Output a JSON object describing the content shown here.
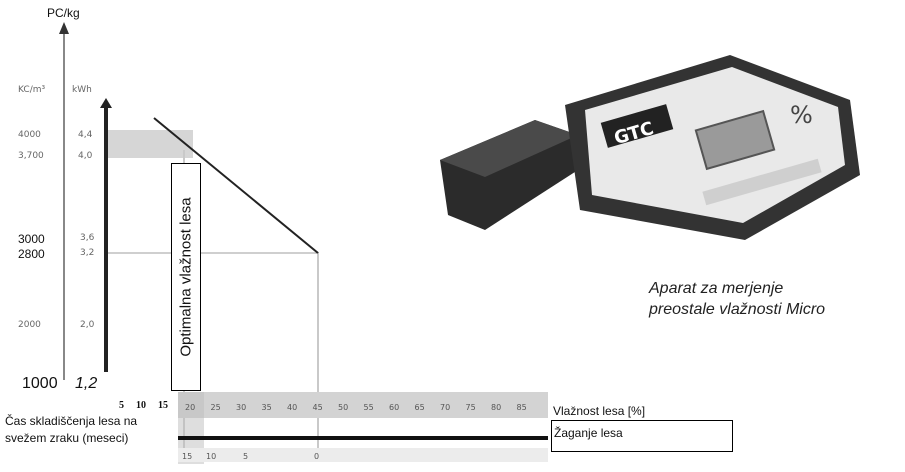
{
  "chart_data": {
    "type": "line",
    "y_axis_title": "PC/kg",
    "y_axis_left_header": "KC/m³",
    "y_axis_right_header": "kWh",
    "y_ticks": [
      {
        "left": "4000",
        "right": "4,4"
      },
      {
        "left": "3,700",
        "right": "4,0"
      },
      {
        "left": "3000",
        "right": "3,6"
      },
      {
        "left": "2800",
        "right": "3,2"
      },
      {
        "left": "2000",
        "right": "2,0"
      }
    ],
    "y_bottom_left": "1000",
    "y_bottom_right": "1,2",
    "x_axis_label": "Vlažnost lesa [%]",
    "x_start_ticks": [
      "5",
      "10",
      "15"
    ],
    "x_ticks": [
      "20",
      "25",
      "30",
      "35",
      "40",
      "45",
      "50",
      "55",
      "60",
      "65",
      "70",
      "75",
      "80",
      "85"
    ],
    "line_points": [
      [
        20,
        4000
      ],
      [
        45,
        2800
      ]
    ],
    "optimal_band_label": "Optimalna vlažnost lesa",
    "bottom_axis_label": "Žaganje lesa",
    "bottom_ticks": [
      "15",
      "10",
      "5",
      "0"
    ],
    "storage_label": "Čas skladiščenja lesa na svežem zraku (meseci)"
  },
  "device": {
    "caption_line1": "Aparat za merjenje",
    "caption_line2": "preostale vlažnosti  Micro",
    "logo": "GTC",
    "unit": "%"
  }
}
